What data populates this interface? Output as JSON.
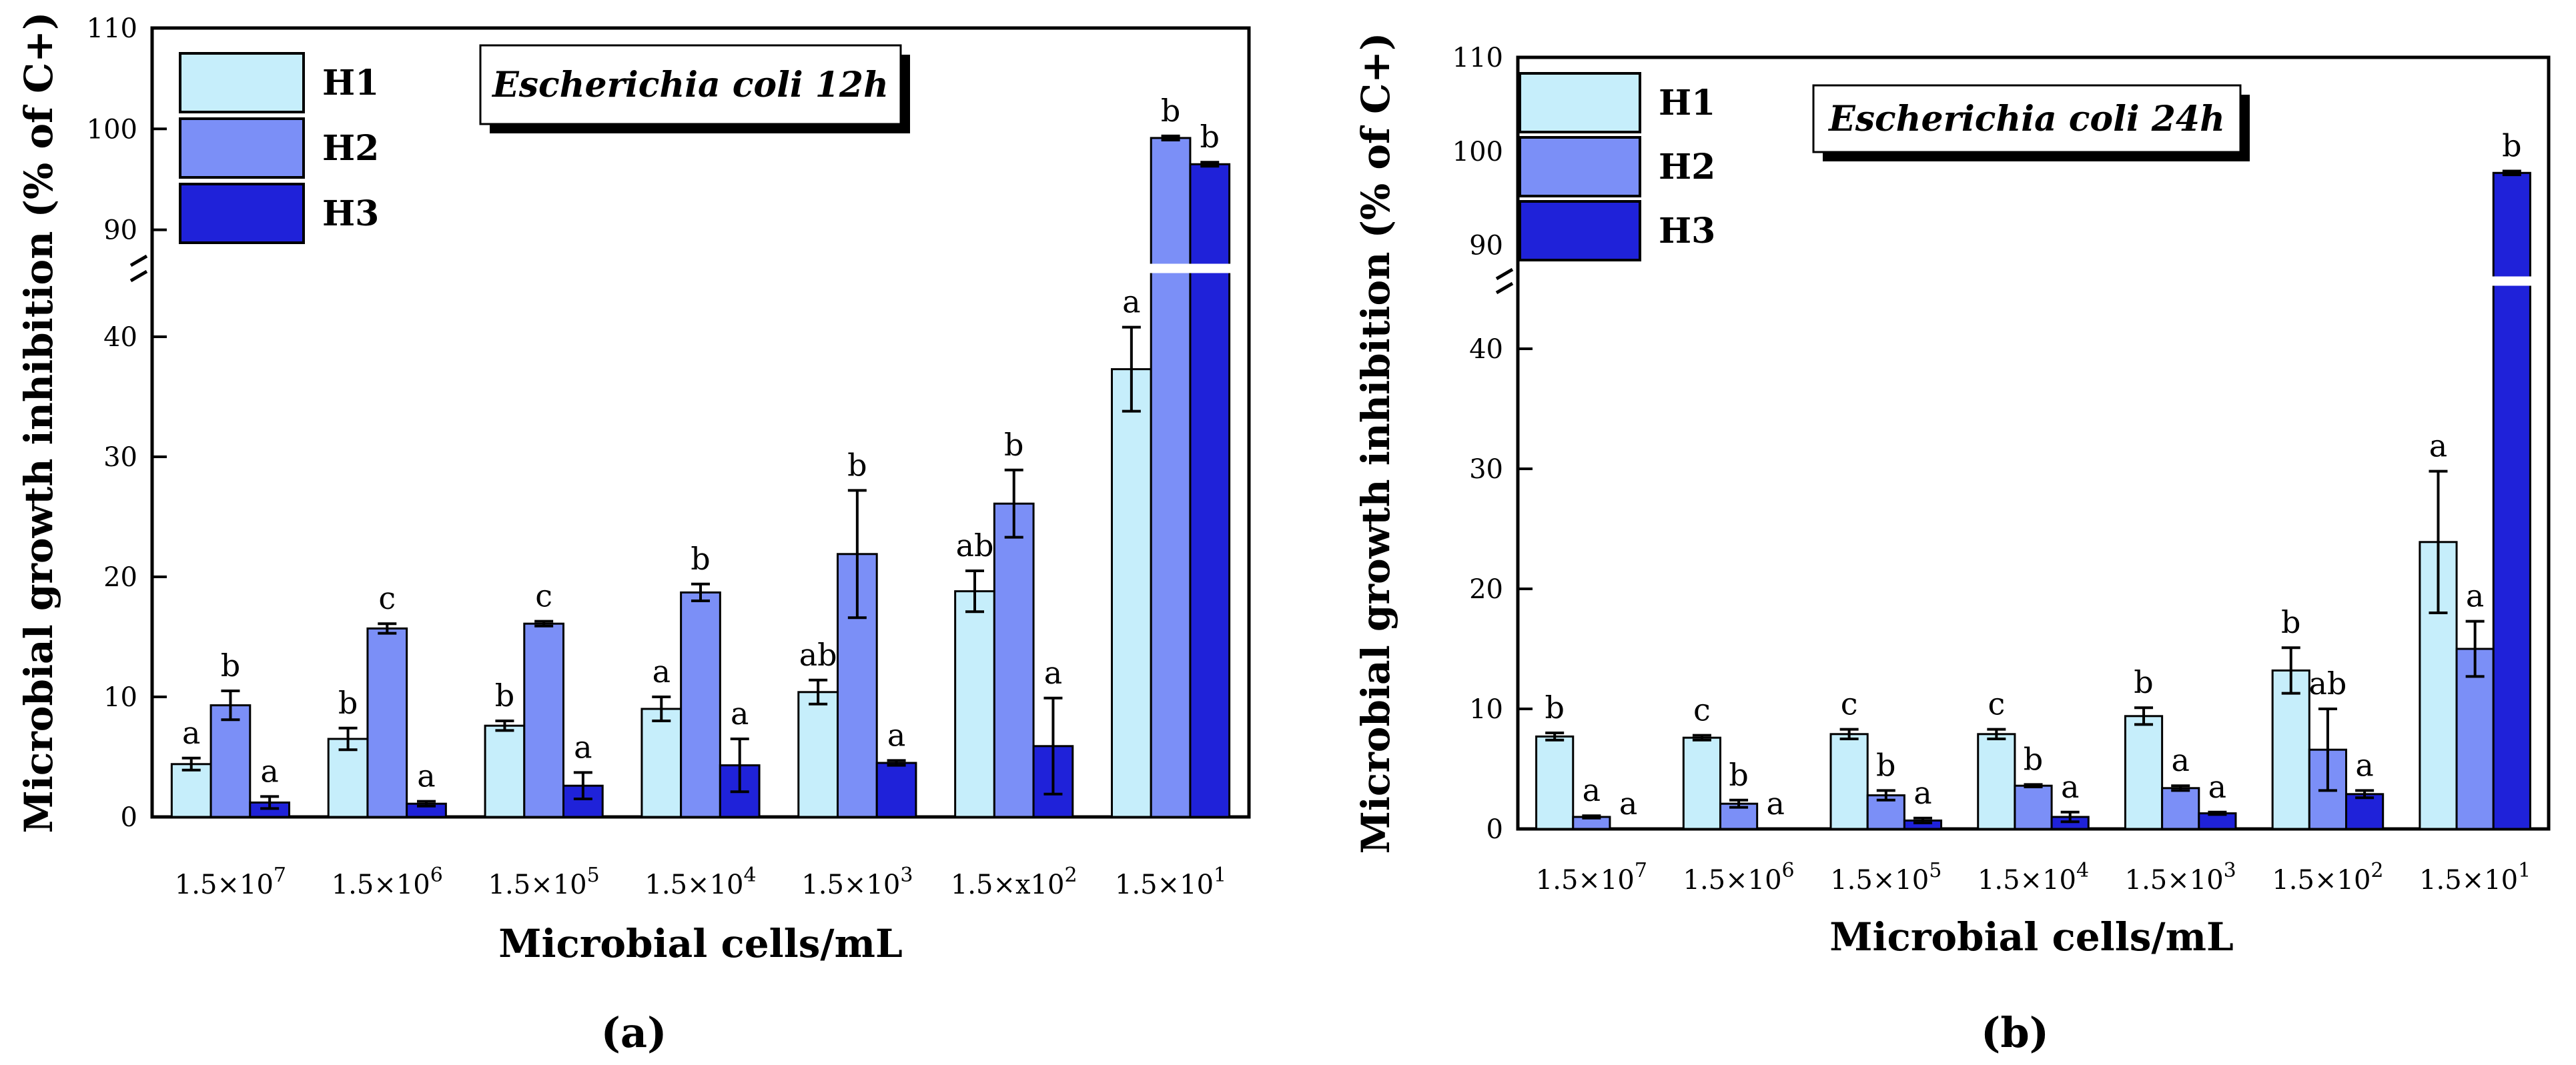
{
  "colors": {
    "H1": "#c6eefb",
    "H2": "#7b8ff7",
    "H3": "#1f22d9",
    "axis": "#000000",
    "break_gap": "#ffffff"
  },
  "chart_data": [
    {
      "type": "bar",
      "panel": "(a)",
      "title": "Escherichia coli 12h",
      "xlabel": "Microbial cells/mL",
      "ylabel": "Microbial growth inhibition (% of C+)",
      "categories": [
        [
          "1.5×10",
          "7"
        ],
        [
          "1.5×10",
          "6"
        ],
        [
          "1.5×10",
          "5"
        ],
        [
          "1.5×10",
          "4"
        ],
        [
          "1.5×10",
          "3"
        ],
        [
          "1.5×x10",
          "2"
        ],
        [
          "1.5×10",
          "1"
        ]
      ],
      "legend": [
        "H1",
        "H2",
        "H3"
      ],
      "y_lower_range": [
        0,
        45
      ],
      "y_upper_range": [
        87,
        110
      ],
      "y_ticks_lower": [
        0,
        10,
        20,
        30,
        40
      ],
      "y_ticks_upper": [
        90,
        100,
        110
      ],
      "series": [
        {
          "name": "H1",
          "values": [
            4.4,
            6.5,
            7.6,
            9.0,
            10.4,
            18.8,
            37.3
          ],
          "errors": [
            0.5,
            0.9,
            0.4,
            1.0,
            1.0,
            1.7,
            3.5
          ],
          "labels": [
            "a",
            "b",
            "b",
            "a",
            "ab",
            "ab",
            "a"
          ]
        },
        {
          "name": "H2",
          "values": [
            9.3,
            15.7,
            16.1,
            18.7,
            21.9,
            26.1,
            99.1
          ],
          "errors": [
            1.2,
            0.4,
            0.2,
            0.7,
            5.3,
            2.8,
            0.2
          ],
          "labels": [
            "b",
            "c",
            "c",
            "b",
            "b",
            "b",
            "b"
          ]
        },
        {
          "name": "H3",
          "values": [
            1.2,
            1.1,
            2.6,
            4.3,
            4.5,
            5.9,
            96.5
          ],
          "errors": [
            0.5,
            0.2,
            1.1,
            2.2,
            0.2,
            4.0,
            0.2
          ],
          "labels": [
            "a",
            "a",
            "a",
            "a",
            "a",
            "a",
            "b"
          ]
        }
      ]
    },
    {
      "type": "bar",
      "panel": "(b)",
      "title": "Escherichia coli 24h",
      "xlabel": "Microbial cells/mL",
      "ylabel": "Microbial growth inhibition (% of C+)",
      "categories": [
        [
          "1.5×10",
          "7"
        ],
        [
          "1.5×10",
          "6"
        ],
        [
          "1.5×10",
          "5"
        ],
        [
          "1.5×10",
          "4"
        ],
        [
          "1.5×10",
          "3"
        ],
        [
          "1.5×10",
          "2"
        ],
        [
          "1.5×10",
          "1"
        ]
      ],
      "legend": [
        "H1",
        "H2",
        "H3"
      ],
      "y_lower_range": [
        0,
        45
      ],
      "y_upper_range": [
        87,
        110
      ],
      "y_ticks_lower": [
        0,
        10,
        20,
        30,
        40
      ],
      "y_ticks_upper": [
        90,
        100,
        110
      ],
      "series": [
        {
          "name": "H1",
          "values": [
            7.7,
            7.6,
            7.9,
            7.9,
            9.4,
            13.2,
            23.9
          ],
          "errors": [
            0.3,
            0.2,
            0.4,
            0.4,
            0.7,
            1.9,
            5.9
          ],
          "labels": [
            "b",
            "c",
            "c",
            "c",
            "b",
            "b",
            "a"
          ]
        },
        {
          "name": "H2",
          "values": [
            1.0,
            2.1,
            2.8,
            3.6,
            3.4,
            6.6,
            15.0
          ],
          "errors": [
            0.1,
            0.3,
            0.4,
            0.1,
            0.2,
            3.4,
            2.3
          ],
          "labels": [
            "a",
            "b",
            "b",
            "b",
            "a",
            "ab",
            "a"
          ]
        },
        {
          "name": "H3",
          "values": [
            0.0,
            0.0,
            0.7,
            1.0,
            1.3,
            2.9,
            97.7
          ],
          "errors": [
            0.0,
            0.0,
            0.2,
            0.4,
            0.1,
            0.3,
            0.2
          ],
          "labels": [
            "a",
            "a",
            "a",
            "a",
            "a",
            "a",
            "b"
          ]
        }
      ]
    }
  ]
}
